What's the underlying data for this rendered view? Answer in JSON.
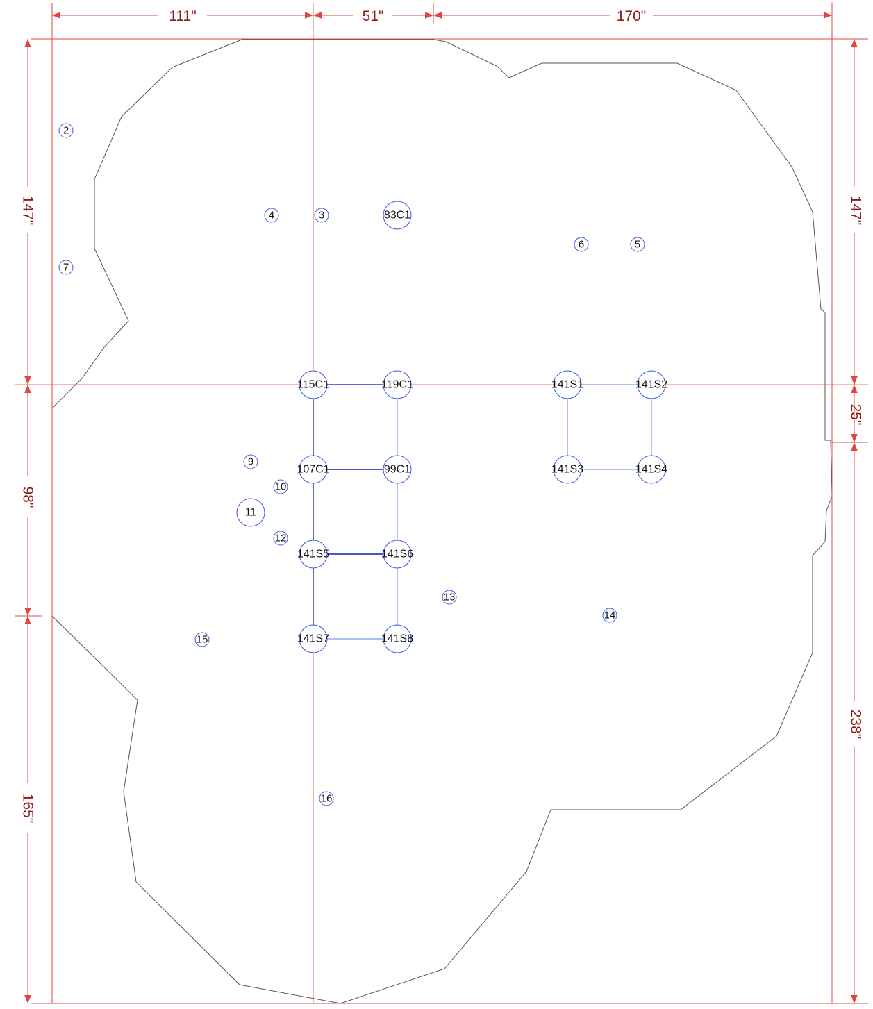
{
  "colors": {
    "dimension": "#e2453f",
    "dimension_text": "#8b1a1a",
    "outline": "#555555",
    "marker": "#3a57e8",
    "connector_light": "#7a9ce8",
    "connector_dark": "#2f3fb8"
  },
  "dimensions": {
    "top": [
      "111\"",
      "51\"",
      "170\""
    ],
    "left": [
      "147\"",
      "98\"",
      "165\""
    ],
    "right": [
      "147\"",
      "25\"",
      "238\""
    ]
  },
  "markers": {
    "m83c1": "83C1",
    "m115c1": "115C1",
    "m119c1": "119C1",
    "m107c1": "107C1",
    "m99c1": "99C1",
    "m141s1": "141S1",
    "m141s2": "141S2",
    "m141s3": "141S3",
    "m141s4": "141S4",
    "m141s5": "141S5",
    "m141s6": "141S6",
    "m141s7": "141S7",
    "m141s8": "141S8",
    "n2": "2",
    "n3": "3",
    "n4": "4",
    "n5": "5",
    "n6": "6",
    "n7": "7",
    "n9": "9",
    "n10": "10",
    "n11": "11",
    "n12": "12",
    "n13": "13",
    "n14": "14",
    "n15": "15",
    "n16": "16"
  }
}
